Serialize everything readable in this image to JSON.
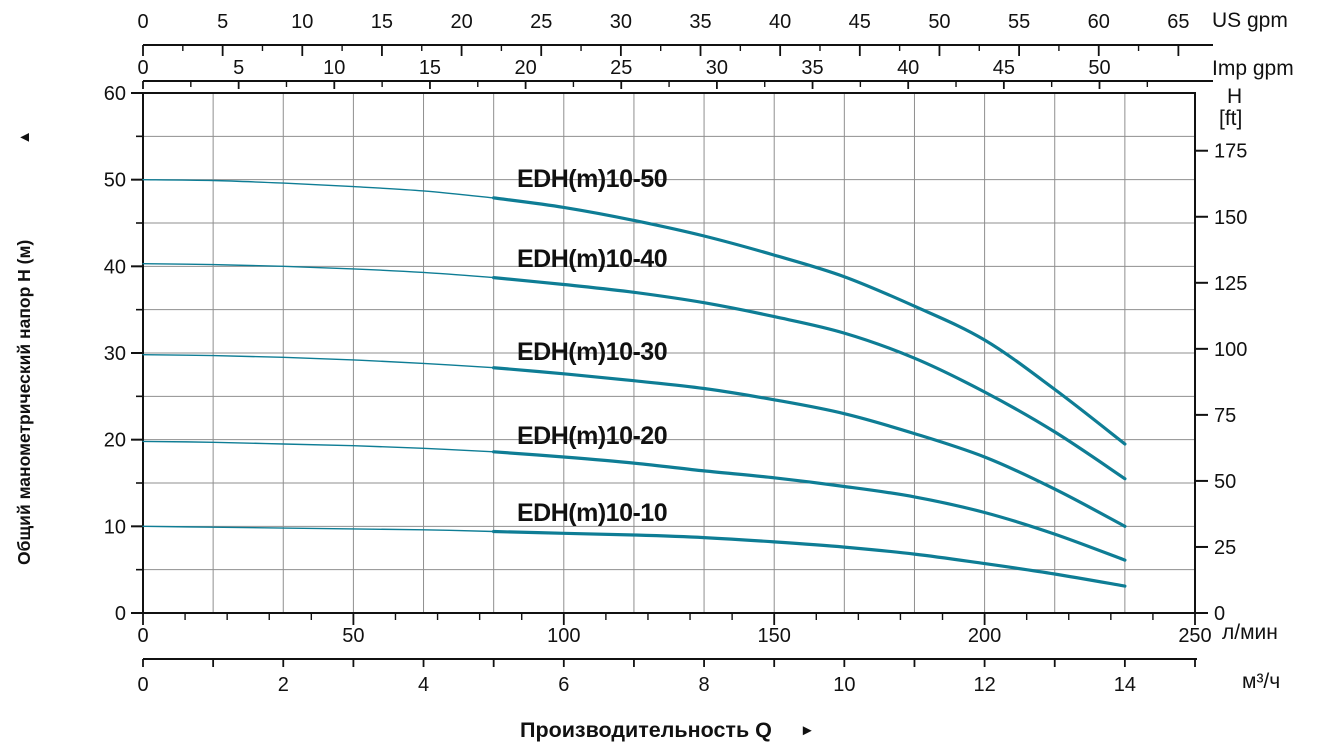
{
  "labels": {
    "flow_title": "Производительность Q",
    "flow_arrow": "►",
    "head_title": "Общий манометрический напор H (м)",
    "head_arrow": "▲"
  },
  "axes": {
    "us_gpm": {
      "unit": "US gpm",
      "ticks": [
        0,
        5,
        10,
        15,
        20,
        25,
        30,
        35,
        40,
        45,
        50,
        55,
        60,
        65
      ]
    },
    "imp_gpm": {
      "unit": "Imp gpm",
      "ticks": [
        0,
        5,
        10,
        15,
        20,
        25,
        30,
        35,
        40,
        45,
        50
      ]
    },
    "lpm": {
      "unit": "л/мин",
      "ticks": [
        0,
        50,
        100,
        150,
        200,
        250
      ]
    },
    "m3h": {
      "unit": "м³/ч",
      "ticks": [
        0,
        2,
        4,
        6,
        8,
        10,
        12,
        14
      ]
    },
    "head_m": {
      "ticks": [
        0,
        10,
        20,
        30,
        40,
        50,
        60
      ]
    },
    "head_ft": {
      "title_top": "H",
      "title_bottom": "[ft]",
      "ticks": [
        0,
        25,
        50,
        75,
        100,
        125,
        150,
        175
      ]
    }
  },
  "colors": {
    "curve": "#0e7d95",
    "grid": "#8f8f8f",
    "axis": "#111111"
  },
  "chart_data": {
    "type": "line",
    "title": "",
    "xlabel": "Производительность Q",
    "ylabel": "Общий манометрический напор H (м)",
    "x_units": [
      {
        "name": "л/мин",
        "range": [
          0,
          250
        ]
      },
      {
        "name": "м³/ч",
        "range": [
          0,
          15
        ]
      },
      {
        "name": "US gpm",
        "range": [
          0,
          65
        ]
      },
      {
        "name": "Imp gpm",
        "range": [
          0,
          52
        ]
      }
    ],
    "y_units": [
      {
        "name": "м",
        "range": [
          0,
          60
        ]
      },
      {
        "name": "ft",
        "range": [
          0,
          175
        ]
      }
    ],
    "grid": "on",
    "solid_range_m3h": [
      5,
      14
    ],
    "series": [
      {
        "label": "EDH(m)10-50",
        "points_m3h_m": [
          [
            0,
            50
          ],
          [
            1,
            49.9
          ],
          [
            2,
            49.6
          ],
          [
            3,
            49.2
          ],
          [
            4,
            48.7
          ],
          [
            5,
            47.9
          ],
          [
            6,
            46.8
          ],
          [
            7,
            45.3
          ],
          [
            8,
            43.5
          ],
          [
            9,
            41.3
          ],
          [
            10,
            38.8
          ],
          [
            11,
            35.4
          ],
          [
            12,
            31.5
          ],
          [
            13,
            25.8
          ],
          [
            14,
            19.5
          ]
        ]
      },
      {
        "label": "EDH(m)10-40",
        "points_m3h_m": [
          [
            0,
            40.3
          ],
          [
            1,
            40.2
          ],
          [
            2,
            40.0
          ],
          [
            3,
            39.7
          ],
          [
            4,
            39.3
          ],
          [
            5,
            38.7
          ],
          [
            6,
            37.9
          ],
          [
            7,
            37.0
          ],
          [
            8,
            35.8
          ],
          [
            9,
            34.2
          ],
          [
            10,
            32.3
          ],
          [
            11,
            29.4
          ],
          [
            12,
            25.5
          ],
          [
            13,
            20.9
          ],
          [
            14,
            15.5
          ]
        ]
      },
      {
        "label": "EDH(m)10-30",
        "points_m3h_m": [
          [
            0,
            29.8
          ],
          [
            1,
            29.7
          ],
          [
            2,
            29.5
          ],
          [
            3,
            29.2
          ],
          [
            4,
            28.8
          ],
          [
            5,
            28.3
          ],
          [
            6,
            27.6
          ],
          [
            7,
            26.8
          ],
          [
            8,
            25.9
          ],
          [
            9,
            24.6
          ],
          [
            10,
            23.0
          ],
          [
            11,
            20.7
          ],
          [
            12,
            18.0
          ],
          [
            13,
            14.3
          ],
          [
            14,
            10.0
          ]
        ]
      },
      {
        "label": "EDH(m)10-20",
        "points_m3h_m": [
          [
            0,
            19.8
          ],
          [
            1,
            19.7
          ],
          [
            2,
            19.5
          ],
          [
            3,
            19.3
          ],
          [
            4,
            19.0
          ],
          [
            5,
            18.6
          ],
          [
            6,
            18.0
          ],
          [
            7,
            17.3
          ],
          [
            8,
            16.4
          ],
          [
            9,
            15.6
          ],
          [
            10,
            14.6
          ],
          [
            11,
            13.4
          ],
          [
            12,
            11.6
          ],
          [
            13,
            9.1
          ],
          [
            14,
            6.1
          ]
        ]
      },
      {
        "label": "EDH(m)10-10",
        "points_m3h_m": [
          [
            0,
            10.0
          ],
          [
            1,
            9.9
          ],
          [
            2,
            9.8
          ],
          [
            3,
            9.7
          ],
          [
            4,
            9.6
          ],
          [
            5,
            9.4
          ],
          [
            6,
            9.2
          ],
          [
            7,
            9.0
          ],
          [
            8,
            8.7
          ],
          [
            9,
            8.2
          ],
          [
            10,
            7.6
          ],
          [
            11,
            6.8
          ],
          [
            12,
            5.7
          ],
          [
            13,
            4.5
          ],
          [
            14,
            3.1
          ]
        ]
      }
    ]
  }
}
